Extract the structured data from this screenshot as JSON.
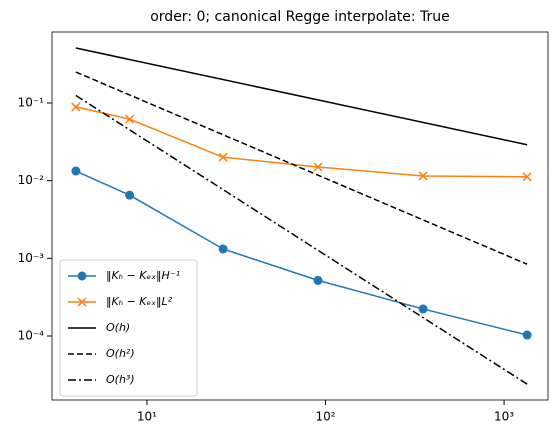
{
  "chart_data": {
    "type": "line",
    "title": "order: 0; canonical Regge interpolate: True",
    "log_x": true,
    "log_y": true,
    "xlim": [
      2.94,
      1762
    ],
    "ylim": [
      1.5e-05,
      0.82
    ],
    "xticks": [
      {
        "value": 10,
        "label": "10¹"
      },
      {
        "value": 100,
        "label": "10²"
      },
      {
        "value": 1000,
        "label": "10³"
      }
    ],
    "yticks": [
      {
        "value": 0.0001,
        "label": "10⁻⁴"
      },
      {
        "value": 0.001,
        "label": "10⁻³"
      },
      {
        "value": 0.01,
        "label": "10⁻²"
      },
      {
        "value": 0.1,
        "label": "10⁻¹"
      }
    ],
    "legend": "lower left",
    "x": [
      4,
      8,
      26.7,
      90.8,
      352,
      1346
    ],
    "series": [
      {
        "name": "‖Kₕ − Kₑₓ‖H⁻¹",
        "color": "#1f77b4",
        "marker": "circle",
        "linestyle": "solid",
        "values": [
          0.0133,
          0.0065,
          0.00132,
          0.00052,
          0.000223,
          0.000103
        ]
      },
      {
        "name": "‖Kₕ − Kₑₓ‖L²",
        "color": "#ff7f0e",
        "marker": "x",
        "linestyle": "solid",
        "values": [
          0.089,
          0.062,
          0.02,
          0.015,
          0.0115,
          0.0112
        ]
      },
      {
        "name": "O(h)",
        "color": "#000000",
        "marker": "none",
        "linestyle": "solid",
        "values": [
          0.51,
          null,
          null,
          null,
          null,
          0.029
        ]
      },
      {
        "name": "O(h²)",
        "color": "#000000",
        "marker": "none",
        "linestyle": "dashed",
        "values": [
          0.25,
          null,
          null,
          null,
          null,
          0.00084
        ]
      },
      {
        "name": "O(h³)",
        "color": "#000000",
        "marker": "none",
        "linestyle": "dashdot",
        "values": [
          0.125,
          null,
          null,
          null,
          null,
          2.4e-05
        ]
      }
    ]
  }
}
